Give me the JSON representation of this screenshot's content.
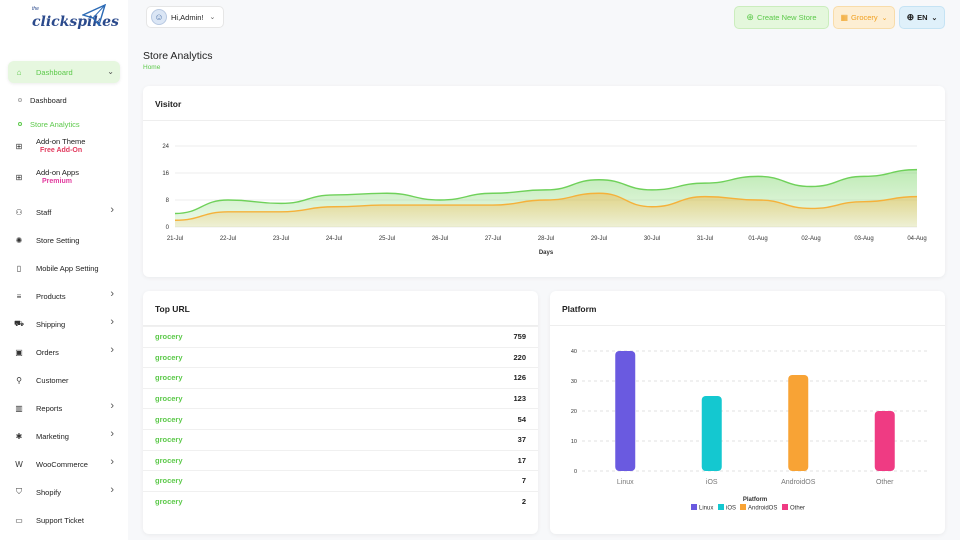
{
  "brand": {
    "name": "clickspikes",
    "tagline": "the"
  },
  "sidebar": {
    "items": [
      {
        "label": "Dashboard",
        "icon": "home-icon",
        "active": true,
        "chevron": true
      },
      {
        "label": "Add-on Theme",
        "icon": "grid-icon",
        "badge": "Free Add-On",
        "badge_color": "#e23a5e"
      },
      {
        "label": "Add-on Apps",
        "icon": "grid-icon",
        "badge": "Premium",
        "badge_color": "#e23a9e"
      },
      {
        "label": "Staff",
        "icon": "users-icon",
        "chevron": true
      },
      {
        "label": "Store Setting",
        "icon": "settings-icon"
      },
      {
        "label": "Mobile App Setting",
        "icon": "mobile-icon"
      },
      {
        "label": "Products",
        "icon": "list-icon",
        "chevron": true
      },
      {
        "label": "Shipping",
        "icon": "truck-icon",
        "chevron": true
      },
      {
        "label": "Orders",
        "icon": "box-icon",
        "chevron": true
      },
      {
        "label": "Customer",
        "icon": "user-icon"
      },
      {
        "label": "Reports",
        "icon": "chart-icon",
        "chevron": true
      },
      {
        "label": "Marketing",
        "icon": "megaphone-icon",
        "chevron": true
      },
      {
        "label": "WooCommerce",
        "icon": "woo-icon",
        "chevron": true
      },
      {
        "label": "Shopify",
        "icon": "shopify-icon",
        "chevron": true
      },
      {
        "label": "Support Ticket",
        "icon": "ticket-icon"
      }
    ],
    "subitems": [
      {
        "label": "Dashboard",
        "active": false
      },
      {
        "label": "Store Analytics",
        "active": true
      }
    ]
  },
  "header": {
    "user": "Hi,Admin!",
    "create_store": "Create New Store",
    "store": "Grocery",
    "language": "EN"
  },
  "page": {
    "title": "Store Analytics",
    "breadcrumb": "Home"
  },
  "visitor": {
    "title": "Visitor"
  },
  "top_url": {
    "title": "Top URL",
    "rows": [
      {
        "name": "grocery",
        "value": "759"
      },
      {
        "name": "grocery",
        "value": "220"
      },
      {
        "name": "grocery",
        "value": "126"
      },
      {
        "name": "grocery",
        "value": "123"
      },
      {
        "name": "grocery",
        "value": "54"
      },
      {
        "name": "grocery",
        "value": "37"
      },
      {
        "name": "grocery",
        "value": "17"
      },
      {
        "name": "grocery",
        "value": "7"
      },
      {
        "name": "grocery",
        "value": "2"
      }
    ]
  },
  "platform": {
    "title": "Platform"
  },
  "chart_data": [
    {
      "type": "area",
      "title": "",
      "xlabel": "Days",
      "ylabel": "",
      "x": [
        "21-Jul",
        "22-Jul",
        "23-Jul",
        "24-Jul",
        "25-Jul",
        "26-Jul",
        "27-Jul",
        "28-Jul",
        "29-Jul",
        "30-Jul",
        "31-Jul",
        "01-Aug",
        "02-Aug",
        "03-Aug",
        "04-Aug"
      ],
      "yticks": [
        "0",
        "8",
        "16",
        "24"
      ],
      "ylim": [
        0,
        24
      ],
      "series": [
        {
          "color": "#6fd15a",
          "values": [
            4,
            8,
            7,
            9.5,
            10,
            8,
            10,
            11,
            14,
            11,
            13,
            15,
            12,
            15,
            17
          ]
        },
        {
          "color": "#f5b13a",
          "values": [
            2,
            4.5,
            4.5,
            6,
            6.5,
            6.5,
            6.5,
            8,
            10,
            6,
            9,
            8,
            5.5,
            7.5,
            9
          ]
        }
      ],
      "grid": true,
      "legend": "none"
    },
    {
      "type": "bar",
      "title": "",
      "xlabel": "Platform",
      "ylabel": "",
      "categories": [
        "Linux",
        "iOS",
        "AndroidOS",
        "Other"
      ],
      "values": [
        40,
        25,
        32,
        20
      ],
      "colors": [
        "#6a5ae0",
        "#14c8d0",
        "#f8a335",
        "#ef3b83"
      ],
      "yticks": [
        "0",
        "10",
        "20",
        "30",
        "40"
      ],
      "ylim": [
        0,
        40
      ],
      "grid": true,
      "legend": "bottom",
      "legend_entries": [
        "Linux",
        "iOS",
        "AndroidOS",
        "Other"
      ]
    }
  ]
}
